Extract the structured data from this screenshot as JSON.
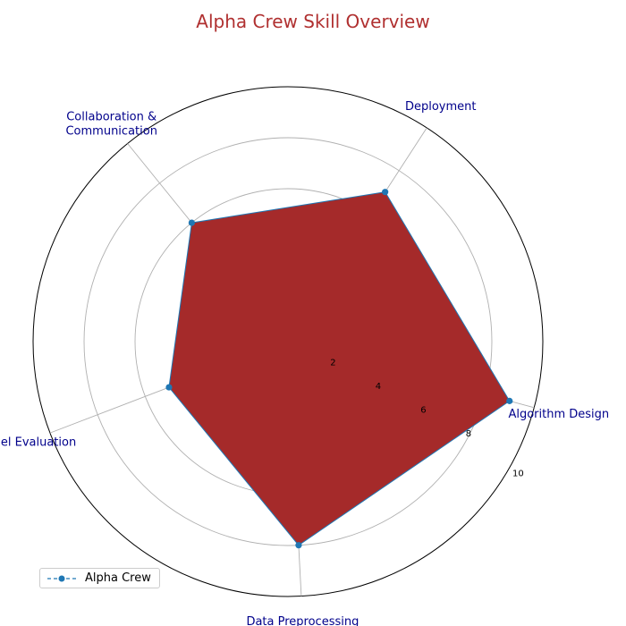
{
  "chart_data": {
    "type": "radar",
    "title": "Alpha Crew Skill Overview",
    "categories": [
      "Algorithm Design",
      "Deployment",
      "Collaboration &\nCommunication",
      "Model Evaluation",
      "Data Preprocessing"
    ],
    "series": [
      {
        "name": "Alpha Crew",
        "values": [
          9,
          7,
          6,
          5,
          8
        ]
      }
    ],
    "rlim": [
      0,
      10
    ],
    "rticks": [
      2,
      4,
      6,
      8,
      10
    ],
    "grid": true,
    "legend": "bottom-left",
    "colors": {
      "fill": "#a52a2a",
      "line": "#1f77b4",
      "title": "#b03030",
      "labels": "#00008b",
      "grid": "#b0b0b0"
    }
  }
}
